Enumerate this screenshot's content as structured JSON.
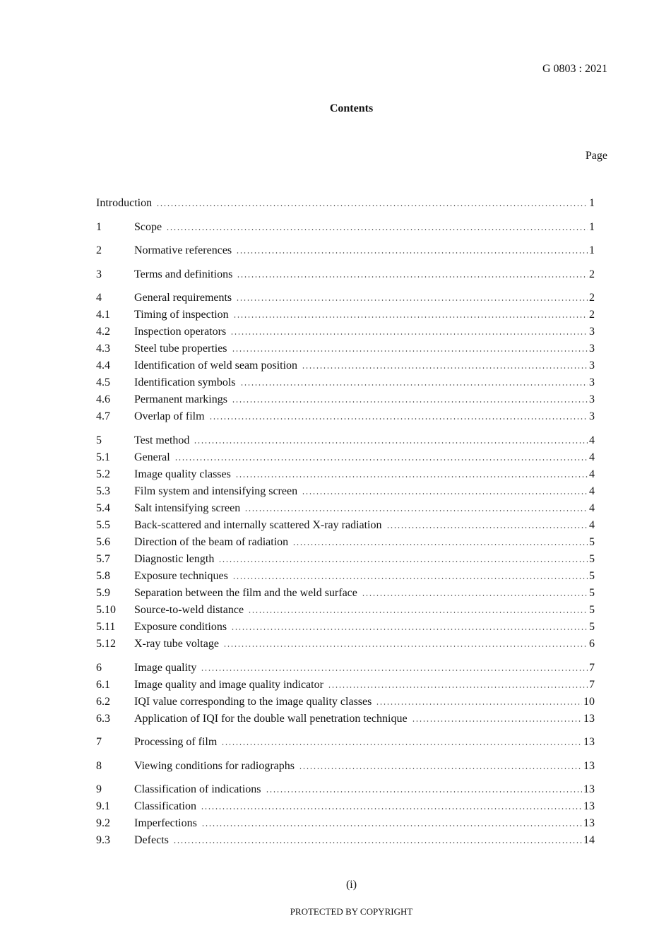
{
  "header": {
    "standard": "G 0803 : 2021",
    "title": "Contents",
    "page_label": "Page"
  },
  "toc": [
    {
      "num": "",
      "title": "Introduction",
      "page": "1",
      "group": true
    },
    {
      "num": "1",
      "title": "Scope",
      "page": "1",
      "group": true
    },
    {
      "num": "2",
      "title": "Normative references",
      "page": "1",
      "group": true
    },
    {
      "num": "3",
      "title": "Terms and definitions",
      "page": "2",
      "group": true
    },
    {
      "num": "4",
      "title": "General requirements",
      "page": "2",
      "group": true
    },
    {
      "num": "4.1",
      "title": "Timing of inspection",
      "page": "2"
    },
    {
      "num": "4.2",
      "title": "Inspection operators",
      "page": "3"
    },
    {
      "num": "4.3",
      "title": "Steel tube properties",
      "page": "3"
    },
    {
      "num": "4.4",
      "title": "Identification of weld seam position",
      "page": "3"
    },
    {
      "num": "4.5",
      "title": "Identification symbols",
      "page": "3"
    },
    {
      "num": "4.6",
      "title": "Permanent markings",
      "page": "3"
    },
    {
      "num": "4.7",
      "title": "Overlap of film",
      "page": "3"
    },
    {
      "num": "5",
      "title": "Test method",
      "page": "4",
      "group": true
    },
    {
      "num": "5.1",
      "title": "General",
      "page": "4"
    },
    {
      "num": "5.2",
      "title": "Image quality classes",
      "page": "4"
    },
    {
      "num": "5.3",
      "title": "Film system and intensifying screen",
      "page": "4"
    },
    {
      "num": "5.4",
      "title": "Salt intensifying screen",
      "page": "4"
    },
    {
      "num": "5.5",
      "title": "Back-scattered and internally scattered X-ray radiation",
      "page": "4"
    },
    {
      "num": "5.6",
      "title": "Direction of the beam of radiation",
      "page": "5"
    },
    {
      "num": "5.7",
      "title": "Diagnostic length",
      "page": "5"
    },
    {
      "num": "5.8",
      "title": "Exposure techniques",
      "page": "5"
    },
    {
      "num": "5.9",
      "title": "Separation between the film and the weld surface",
      "page": "5"
    },
    {
      "num": "5.10",
      "title": "Source-to-weld distance",
      "page": "5"
    },
    {
      "num": "5.11",
      "title": "Exposure conditions",
      "page": "5"
    },
    {
      "num": "5.12",
      "title": "X-ray tube voltage",
      "page": "6"
    },
    {
      "num": "6",
      "title": "Image quality",
      "page": "7",
      "group": true
    },
    {
      "num": "6.1",
      "title": "Image quality and image quality indicator",
      "page": "7"
    },
    {
      "num": "6.2",
      "title": "IQI value corresponding to the image quality classes",
      "page": "10"
    },
    {
      "num": "6.3",
      "title": "Application of IQI for the double wall penetration technique",
      "page": "13"
    },
    {
      "num": "7",
      "title": "Processing of film",
      "page": "13",
      "group": true
    },
    {
      "num": "8",
      "title": "Viewing conditions for radiographs",
      "page": "13",
      "group": true
    },
    {
      "num": "9",
      "title": "Classification of indications",
      "page": "13",
      "group": true
    },
    {
      "num": "9.1",
      "title": "Classification",
      "page": "13"
    },
    {
      "num": "9.2",
      "title": "Imperfections",
      "page": "13"
    },
    {
      "num": "9.3",
      "title": "Defects",
      "page": "14"
    }
  ],
  "footer": {
    "page_number": "(i)",
    "copyright": "PROTECTED BY COPYRIGHT"
  }
}
